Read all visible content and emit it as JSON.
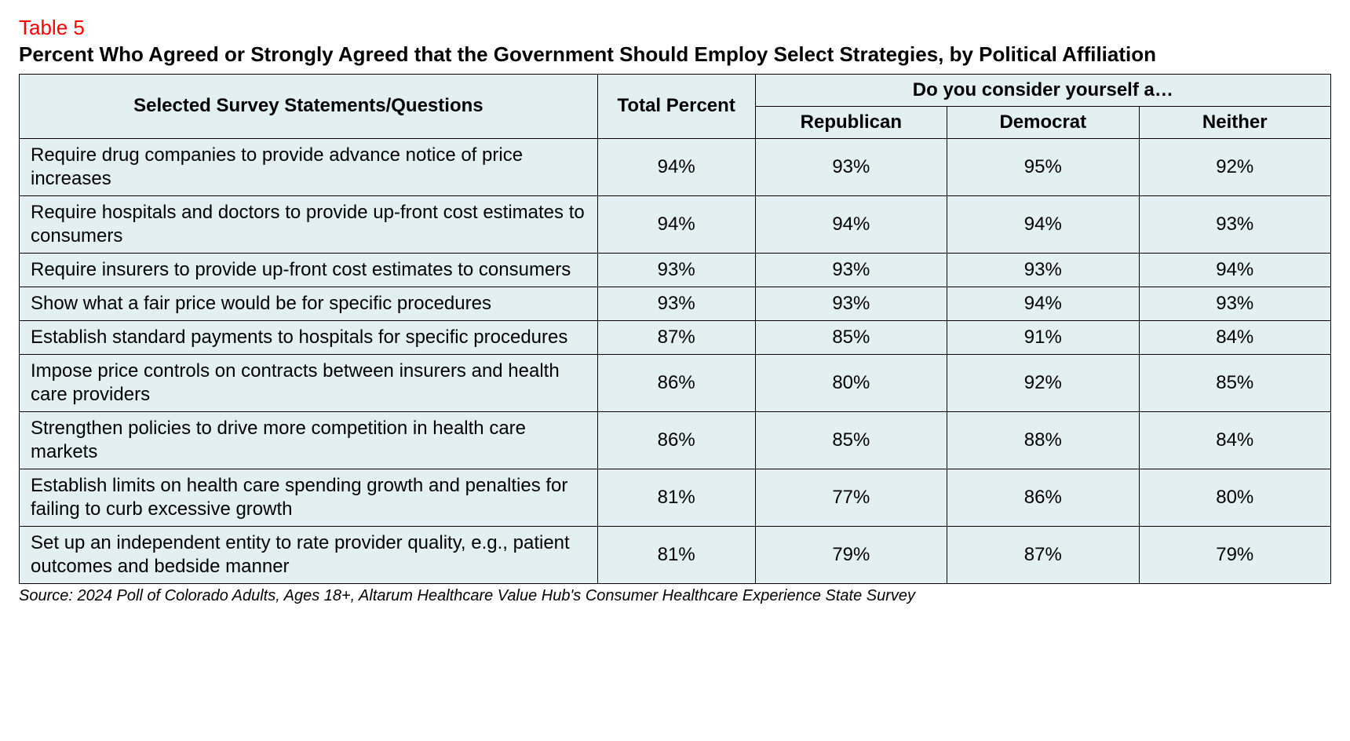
{
  "table_label": "Table 5",
  "title": "Percent Who Agreed or Strongly Agreed that the Government Should Employ Select Strategies, by Political Affiliation",
  "columns": {
    "statements": "Selected Survey Statements/Questions",
    "total": "Total Percent",
    "group_header": "Do you consider yourself a…",
    "republican": "Republican",
    "democrat": "Democrat",
    "neither": "Neither"
  },
  "rows": [
    {
      "statement": "Require drug companies to provide advance notice of price increases",
      "total": "94%",
      "republican": "93%",
      "democrat": "95%",
      "neither": "92%"
    },
    {
      "statement": "Require hospitals and doctors to provide up-front cost estimates to consumers",
      "total": "94%",
      "republican": "94%",
      "democrat": "94%",
      "neither": "93%"
    },
    {
      "statement": "Require insurers to provide up-front cost estimates to consumers",
      "total": "93%",
      "republican": "93%",
      "democrat": "93%",
      "neither": "94%"
    },
    {
      "statement": "Show what a fair price would be for specific procedures",
      "total": "93%",
      "republican": "93%",
      "democrat": "94%",
      "neither": "93%"
    },
    {
      "statement": "Establish standard payments to hospitals for specific procedures",
      "total": "87%",
      "republican": "85%",
      "democrat": "91%",
      "neither": "84%"
    },
    {
      "statement": "Impose price controls on contracts between insurers and health care providers",
      "total": "86%",
      "republican": "80%",
      "democrat": "92%",
      "neither": "85%"
    },
    {
      "statement": "Strengthen policies to drive more competition in health care markets",
      "total": "86%",
      "republican": "85%",
      "democrat": "88%",
      "neither": "84%"
    },
    {
      "statement": "Establish limits on health care spending growth and penalties for failing to curb excessive growth",
      "total": "81%",
      "republican": "77%",
      "democrat": "86%",
      "neither": "80%"
    },
    {
      "statement": "Set up an independent entity to rate provider quality, e.g., patient outcomes and bedside manner",
      "total": "81%",
      "republican": "79%",
      "democrat": "87%",
      "neither": "79%"
    }
  ],
  "source": "Source: 2024 Poll of Colorado Adults, Ages 18+, Altarum Healthcare Value Hub's Consumer Healthcare Experience State Survey",
  "style": {
    "label_color": "#ff0000",
    "header_bg": "#e3f0f2",
    "cell_bg": "#e3f0f2",
    "border_color": "#000000",
    "font_family": "Arial, Helvetica, sans-serif",
    "title_fontsize": 26,
    "cell_fontsize": 24,
    "source_fontsize": 20
  }
}
